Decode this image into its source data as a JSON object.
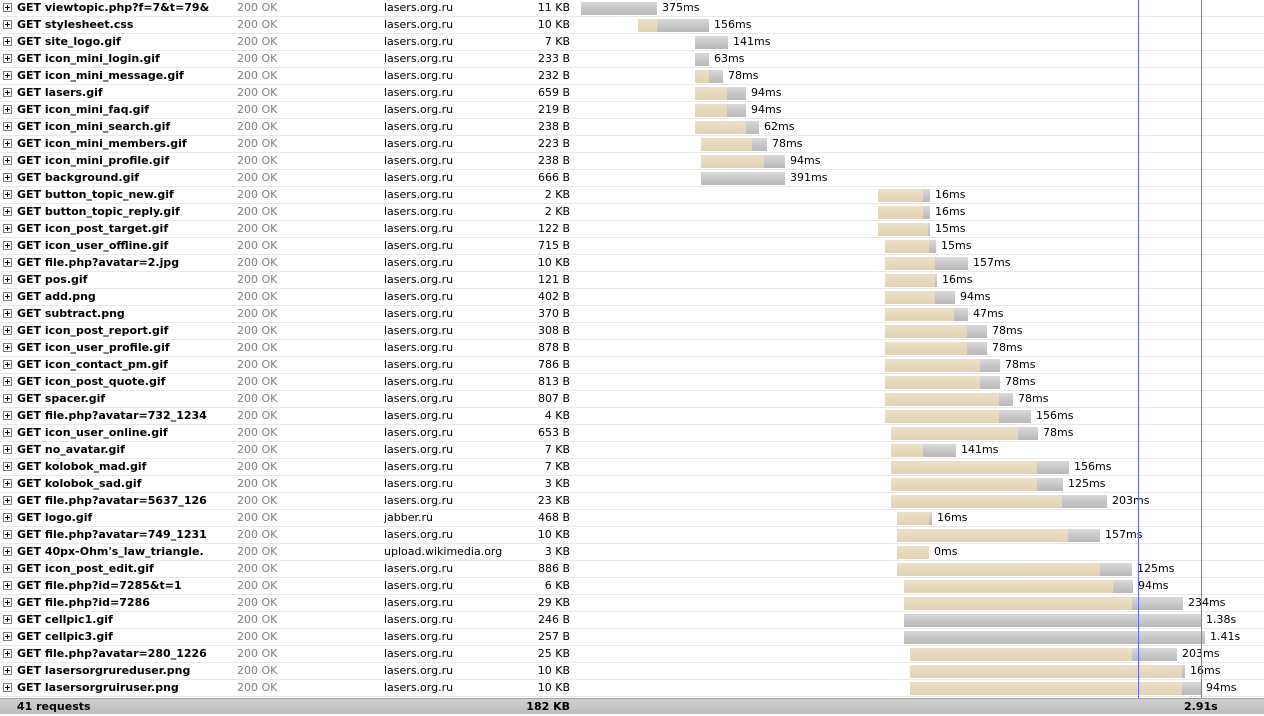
{
  "requests": [
    {
      "url": "GET viewtopic.php?f=7&t=79&",
      "status": "200 OK",
      "domain": "lasers.org.ru",
      "size": "11 KB",
      "time": "375ms",
      "colors": {
        "wait": "#e4d6ba",
        "receive": "#c4c4c4"
      }
    },
    {
      "url": "GET stylesheet.css",
      "status": "200 OK",
      "domain": "lasers.org.ru",
      "size": "10 KB",
      "time": "156ms"
    },
    {
      "url": "GET site_logo.gif",
      "status": "200 OK",
      "domain": "lasers.org.ru",
      "size": "7 KB",
      "time": "141ms"
    },
    {
      "url": "GET icon_mini_login.gif",
      "status": "200 OK",
      "domain": "lasers.org.ru",
      "size": "233 B",
      "time": "63ms"
    },
    {
      "url": "GET icon_mini_message.gif",
      "status": "200 OK",
      "domain": "lasers.org.ru",
      "size": "232 B",
      "time": "78ms"
    },
    {
      "url": "GET lasers.gif",
      "status": "200 OK",
      "domain": "lasers.org.ru",
      "size": "659 B",
      "time": "94ms"
    },
    {
      "url": "GET icon_mini_faq.gif",
      "status": "200 OK",
      "domain": "lasers.org.ru",
      "size": "219 B",
      "time": "94ms"
    },
    {
      "url": "GET icon_mini_search.gif",
      "status": "200 OK",
      "domain": "lasers.org.ru",
      "size": "238 B",
      "time": "62ms"
    },
    {
      "url": "GET icon_mini_members.gif",
      "status": "200 OK",
      "domain": "lasers.org.ru",
      "size": "223 B",
      "time": "78ms"
    },
    {
      "url": "GET icon_mini_profile.gif",
      "status": "200 OK",
      "domain": "lasers.org.ru",
      "size": "238 B",
      "time": "94ms"
    },
    {
      "url": "GET background.gif",
      "status": "200 OK",
      "domain": "lasers.org.ru",
      "size": "666 B",
      "time": "391ms"
    },
    {
      "url": "GET button_topic_new.gif",
      "status": "200 OK",
      "domain": "lasers.org.ru",
      "size": "2 KB",
      "time": "16ms"
    },
    {
      "url": "GET button_topic_reply.gif",
      "status": "200 OK",
      "domain": "lasers.org.ru",
      "size": "2 KB",
      "time": "16ms"
    },
    {
      "url": "GET icon_post_target.gif",
      "status": "200 OK",
      "domain": "lasers.org.ru",
      "size": "122 B",
      "time": "15ms"
    },
    {
      "url": "GET icon_user_offline.gif",
      "status": "200 OK",
      "domain": "lasers.org.ru",
      "size": "715 B",
      "time": "15ms"
    },
    {
      "url": "GET file.php?avatar=2.jpg",
      "status": "200 OK",
      "domain": "lasers.org.ru",
      "size": "10 KB",
      "time": "157ms"
    },
    {
      "url": "GET pos.gif",
      "status": "200 OK",
      "domain": "lasers.org.ru",
      "size": "121 B",
      "time": "16ms"
    },
    {
      "url": "GET add.png",
      "status": "200 OK",
      "domain": "lasers.org.ru",
      "size": "402 B",
      "time": "94ms"
    },
    {
      "url": "GET subtract.png",
      "status": "200 OK",
      "domain": "lasers.org.ru",
      "size": "370 B",
      "time": "47ms"
    },
    {
      "url": "GET icon_post_report.gif",
      "status": "200 OK",
      "domain": "lasers.org.ru",
      "size": "308 B",
      "time": "78ms"
    },
    {
      "url": "GET icon_user_profile.gif",
      "status": "200 OK",
      "domain": "lasers.org.ru",
      "size": "878 B",
      "time": "78ms"
    },
    {
      "url": "GET icon_contact_pm.gif",
      "status": "200 OK",
      "domain": "lasers.org.ru",
      "size": "786 B",
      "time": "78ms"
    },
    {
      "url": "GET icon_post_quote.gif",
      "status": "200 OK",
      "domain": "lasers.org.ru",
      "size": "813 B",
      "time": "78ms"
    },
    {
      "url": "GET spacer.gif",
      "status": "200 OK",
      "domain": "lasers.org.ru",
      "size": "807 B",
      "time": "78ms"
    },
    {
      "url": "GET file.php?avatar=732_1234",
      "status": "200 OK",
      "domain": "lasers.org.ru",
      "size": "4 KB",
      "time": "156ms"
    },
    {
      "url": "GET icon_user_online.gif",
      "status": "200 OK",
      "domain": "lasers.org.ru",
      "size": "653 B",
      "time": "78ms"
    },
    {
      "url": "GET no_avatar.gif",
      "status": "200 OK",
      "domain": "lasers.org.ru",
      "size": "7 KB",
      "time": "141ms"
    },
    {
      "url": "GET kolobok_mad.gif",
      "status": "200 OK",
      "domain": "lasers.org.ru",
      "size": "7 KB",
      "time": "156ms"
    },
    {
      "url": "GET kolobok_sad.gif",
      "status": "200 OK",
      "domain": "lasers.org.ru",
      "size": "3 KB",
      "time": "125ms"
    },
    {
      "url": "GET file.php?avatar=5637_126",
      "status": "200 OK",
      "domain": "lasers.org.ru",
      "size": "23 KB",
      "time": "203ms"
    },
    {
      "url": "GET logo.gif",
      "status": "200 OK",
      "domain": "jabber.ru",
      "size": "468 B",
      "time": "16ms"
    },
    {
      "url": "GET file.php?avatar=749_1231",
      "status": "200 OK",
      "domain": "lasers.org.ru",
      "size": "10 KB",
      "time": "157ms"
    },
    {
      "url": "GET 40px-Ohm's_law_triangle.",
      "status": "200 OK",
      "domain": "upload.wikimedia.org",
      "size": "3 KB",
      "time": "0ms"
    },
    {
      "url": "GET icon_post_edit.gif",
      "status": "200 OK",
      "domain": "lasers.org.ru",
      "size": "886 B",
      "time": "125ms"
    },
    {
      "url": "GET file.php?id=7285&t=1",
      "status": "200 OK",
      "domain": "lasers.org.ru",
      "size": "6 KB",
      "time": "94ms"
    },
    {
      "url": "GET file.php?id=7286",
      "status": "200 OK",
      "domain": "lasers.org.ru",
      "size": "29 KB",
      "time": "234ms"
    },
    {
      "url": "GET cellpic1.gif",
      "status": "200 OK",
      "domain": "lasers.org.ru",
      "size": "246 B",
      "time": "1.38s"
    },
    {
      "url": "GET cellpic3.gif",
      "status": "200 OK",
      "domain": "lasers.org.ru",
      "size": "257 B",
      "time": "1.41s"
    },
    {
      "url": "GET file.php?avatar=280_1226",
      "status": "200 OK",
      "domain": "lasers.org.ru",
      "size": "25 KB",
      "time": "203ms"
    },
    {
      "url": "GET lasersorgrureduser.png",
      "status": "200 OK",
      "domain": "lasers.org.ru",
      "size": "10 KB",
      "time": "16ms"
    },
    {
      "url": "GET lasersorgruiruser.png",
      "status": "200 OK",
      "domain": "lasers.org.ru",
      "size": "10 KB",
      "time": "94ms"
    }
  ],
  "summary": {
    "requests": "41 requests",
    "total_size": "182 KB",
    "total_time": "2.91s"
  },
  "colors": {
    "wait_bar": "#e4d6ba",
    "receive_bar": "#c4c4c4",
    "dom_loaded_line": "#6666ff",
    "load_line": "#cc6666",
    "status_text": "#808080",
    "summary_bg": "#c6c6c6"
  },
  "icons": {
    "expand": "plus-box-icon"
  }
}
